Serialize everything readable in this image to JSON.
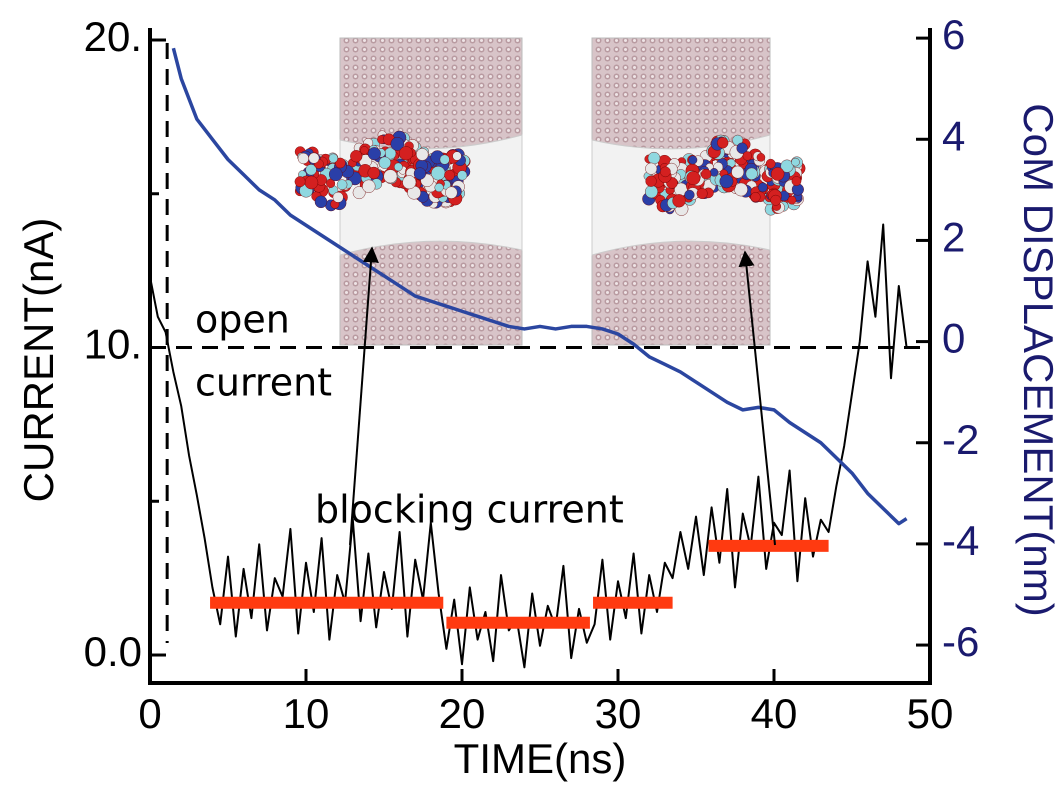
{
  "chart_data": {
    "type": "line",
    "xlabel": "TIME(ns)",
    "ylabel": "CURRENT(nA)",
    "y2label": "CoM DISPLACEMENT(nm)",
    "xlim": [
      0,
      50
    ],
    "xticks": [
      0,
      10,
      20,
      30,
      40,
      50
    ],
    "ylim": [
      -0.91,
      20.39
    ],
    "yticks": [
      {
        "value": 0,
        "label": "0.0"
      },
      {
        "value": 10,
        "label": "10."
      },
      {
        "value": 20,
        "label": "20."
      }
    ],
    "yminor_ticks": [
      5,
      15
    ],
    "y2lim": [
      -6.75,
      6.2
    ],
    "y2ticks": [
      -6,
      -4,
      -2,
      0,
      2,
      4,
      6
    ],
    "reference_lines": {
      "x": 1.1,
      "y": 10
    },
    "series": [
      {
        "color": "#000000",
        "axis": "y",
        "x": [
          0,
          0.5,
          1,
          1.5,
          2,
          2.5,
          3,
          3.5,
          4,
          4.5,
          5,
          5.5,
          6,
          6.5,
          7,
          7.5,
          8,
          8.5,
          9,
          9.5,
          10,
          10.5,
          11,
          11.5,
          12,
          12.5,
          13,
          13.5,
          14,
          14.5,
          15,
          15.5,
          16,
          16.5,
          17,
          17.5,
          18,
          18.5,
          19,
          19.5,
          20,
          20.5,
          21,
          21.5,
          22,
          22.5,
          23,
          23.5,
          24,
          24.5,
          25,
          25.5,
          26,
          26.5,
          27,
          27.5,
          28,
          28.5,
          29,
          29.5,
          30,
          30.5,
          31,
          31.5,
          32,
          32.5,
          33,
          33.5,
          34,
          34.5,
          35,
          35.5,
          36,
          36.5,
          37,
          37.5,
          38,
          38.5,
          39,
          39.5,
          40,
          40.5,
          41,
          41.5,
          42,
          42.5,
          43,
          43.5,
          44,
          44.5,
          45,
          45.5,
          46,
          46.5,
          47,
          47.5,
          48,
          48.5
        ],
        "values": [
          12.3,
          11,
          10.5,
          9.2,
          8.1,
          6.5,
          5.2,
          3.8,
          2.2,
          1.0,
          3.2,
          0.6,
          2.8,
          1.2,
          3.6,
          0.8,
          2.5,
          1.9,
          4.1,
          0.7,
          3.0,
          1.4,
          3.8,
          0.5,
          2.6,
          1.7,
          4.4,
          1.1,
          3.3,
          0.9,
          2.7,
          1.5,
          4.0,
          0.6,
          3.1,
          1.8,
          4.3,
          2.0,
          0.2,
          1.8,
          -0.3,
          2.2,
          0.5,
          1.4,
          -0.2,
          2.6,
          0.8,
          1.2,
          -0.4,
          2.0,
          0.3,
          1.6,
          0.9,
          2.9,
          -0.1,
          1.5,
          0.4,
          1.0,
          3.1,
          0.5,
          2.4,
          1.2,
          3.3,
          0.7,
          2.6,
          1.4,
          3.0,
          2.5,
          4.0,
          2.8,
          4.5,
          2.6,
          4.8,
          3.0,
          5.4,
          2.2,
          4.6,
          3.5,
          5.8,
          2.8,
          4.3,
          3.9,
          6.0,
          2.4,
          5.1,
          3.2,
          4.4,
          4.0,
          5.5,
          6.8,
          8.5,
          10.2,
          12.8,
          11.0,
          14.0,
          9.0,
          12.0,
          10.0
        ]
      },
      {
        "color": "#2b46a0",
        "axis": "y2",
        "x": [
          1.5,
          2,
          3,
          4,
          5,
          6,
          7,
          8,
          9,
          10,
          11,
          12,
          13,
          14,
          15,
          16,
          17,
          18,
          19,
          20,
          21,
          22,
          23,
          24,
          25,
          26,
          27,
          28,
          29,
          30,
          31,
          32,
          33,
          34,
          35,
          36,
          37,
          38,
          39,
          40,
          41,
          42,
          43,
          44,
          45,
          46,
          47,
          48,
          48.5
        ],
        "values": [
          5.8,
          5.2,
          4.4,
          4.0,
          3.6,
          3.3,
          3.0,
          2.8,
          2.5,
          2.3,
          2.1,
          1.9,
          1.7,
          1.5,
          1.3,
          1.1,
          0.9,
          0.8,
          0.7,
          0.6,
          0.5,
          0.4,
          0.3,
          0.25,
          0.3,
          0.25,
          0.3,
          0.3,
          0.25,
          0.15,
          -0.05,
          -0.3,
          -0.45,
          -0.6,
          -0.8,
          -1.0,
          -1.2,
          -1.35,
          -1.3,
          -1.35,
          -1.6,
          -1.8,
          -2.0,
          -2.3,
          -2.6,
          -3.0,
          -3.3,
          -3.6,
          -3.5
        ]
      }
    ],
    "levels": {
      "color": "#ff3a10",
      "items": [
        {
          "x": [
            3.85,
            18.8
          ],
          "value": 1.7
        },
        {
          "x": [
            19.0,
            28.2
          ],
          "value": 1.05
        },
        {
          "x": [
            28.4,
            33.5
          ],
          "value": 1.7
        },
        {
          "x": [
            35.8,
            43.5
          ],
          "value": 3.55
        }
      ]
    },
    "annotations": [
      "open",
      "current",
      "blocking current"
    ]
  }
}
